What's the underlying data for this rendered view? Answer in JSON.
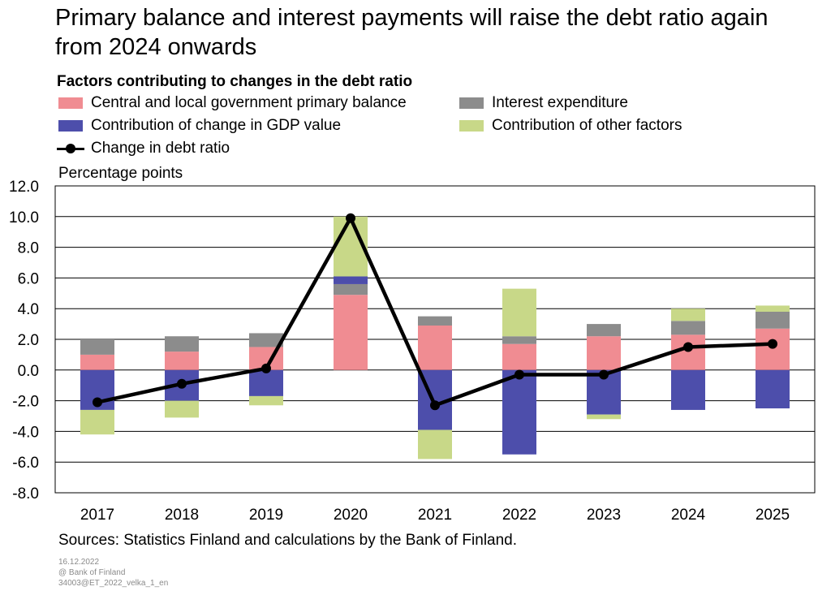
{
  "title_line1": "Primary balance and interest payments will raise the debt ratio again",
  "title_line2": "from 2024 onwards",
  "source": "Sources: Statistics Finland and calculations by the Bank of Finland.",
  "footer": {
    "date": "16.12.2022",
    "org": "@ Bank of Finland",
    "code": "34003@ET_2022_velka_1_en"
  },
  "chart_data": {
    "type": "bar",
    "stacked": true,
    "title": "Factors contributing to changes in the debt ratio",
    "ylabel": "Percentage points",
    "ylim": [
      -8,
      12
    ],
    "yticks": [
      "12.0",
      "10.0",
      "8.0",
      "6.0",
      "4.0",
      "2.0",
      "0.0",
      "-2.0",
      "-4.0",
      "-6.0",
      "-8.0"
    ],
    "grid": true,
    "legend_position": "top",
    "categories": [
      "2017",
      "2018",
      "2019",
      "2020",
      "2021",
      "2022",
      "2023",
      "2024",
      "2025"
    ],
    "series": [
      {
        "name": "Central and local government primary balance",
        "color": "#f08c92",
        "values": [
          1.0,
          1.2,
          1.5,
          4.9,
          2.9,
          1.7,
          2.2,
          2.3,
          2.7
        ]
      },
      {
        "name": "Interest expenditure",
        "color": "#8c8c8c",
        "values": [
          1.0,
          1.0,
          0.9,
          0.7,
          0.6,
          0.5,
          0.8,
          0.9,
          1.1
        ]
      },
      {
        "name": "Contribution of change in GDP value",
        "color": "#4d4eab",
        "values": [
          -2.6,
          -2.0,
          -1.7,
          0.5,
          -3.9,
          -5.5,
          -2.9,
          -2.6,
          -2.5
        ]
      },
      {
        "name": "Contribution of other factors",
        "color": "#c8d888",
        "values": [
          -1.6,
          -1.1,
          -0.6,
          3.9,
          -1.9,
          3.1,
          -0.3,
          0.8,
          0.4
        ]
      }
    ],
    "line": {
      "name": "Change in debt ratio",
      "color": "#000000",
      "values": [
        -2.1,
        -0.9,
        0.1,
        9.9,
        -2.3,
        -0.3,
        -0.3,
        1.5,
        1.7
      ]
    }
  }
}
